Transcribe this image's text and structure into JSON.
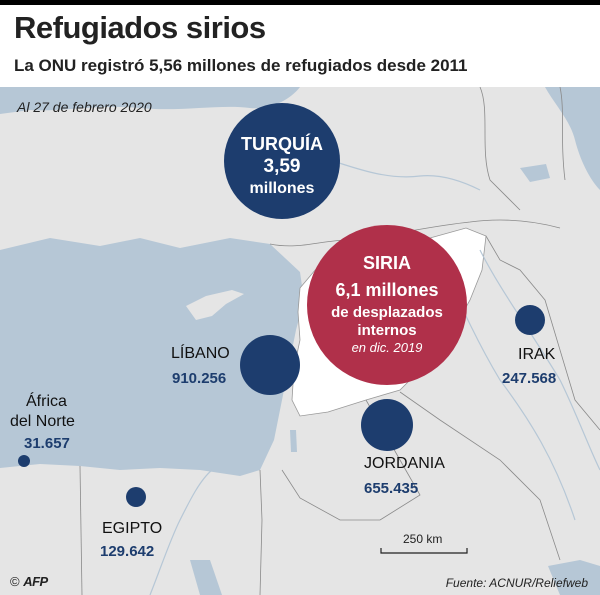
{
  "title": "Refugiados sirios",
  "subtitle": "La ONU registró 5,56 millones de refugiados desde 2011",
  "date": "Al 27 de febrero 2020",
  "turquia": {
    "name": "TURQUÍA",
    "value": "3,59",
    "unit": "millones"
  },
  "siria": {
    "name": "SIRIA",
    "value": "6,1 millones",
    "line1": "de desplazados",
    "line2": "internos",
    "note": "en dic. 2019"
  },
  "libano": {
    "name": "LÍBANO",
    "value": "910.256"
  },
  "irak": {
    "name": "IRAK",
    "value": "247.568"
  },
  "jordania": {
    "name": "JORDANIA",
    "value": "655.435"
  },
  "africa": {
    "name1": "África",
    "name2": "del Norte",
    "value": "31.657"
  },
  "egipto": {
    "name": "EGIPTO",
    "value": "129.642"
  },
  "scale": "250 km",
  "source": "Fuente: ACNUR/Reliefweb",
  "logo": {
    "copyright": "©",
    "brand": "AFP"
  },
  "colors": {
    "navy": "#1d3d6e",
    "red": "#b0304a",
    "sea": "#b6c7d6",
    "land": "#e5e5e5",
    "syria": "#ffffff"
  }
}
